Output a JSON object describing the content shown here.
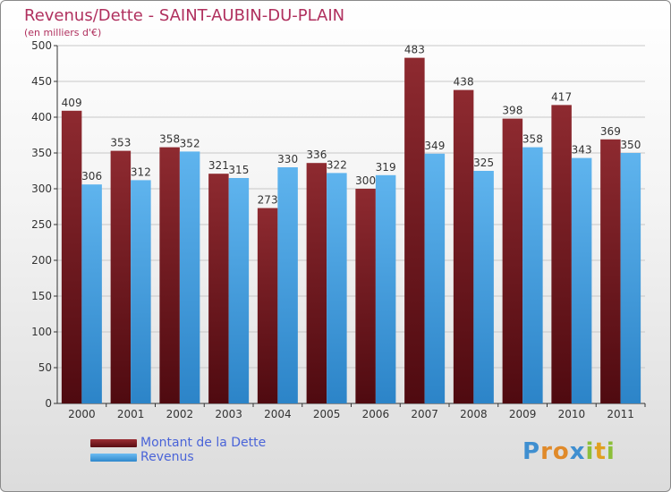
{
  "chart_data": {
    "type": "bar",
    "title": "Revenus/Dette - SAINT-AUBIN-DU-PLAIN",
    "subtitle": "(en milliers d'€)",
    "categories": [
      "2000",
      "2001",
      "2002",
      "2003",
      "2004",
      "2005",
      "2006",
      "2007",
      "2008",
      "2009",
      "2010",
      "2011"
    ],
    "series": [
      {
        "name": "Montant de la Dette",
        "values": [
          409,
          353,
          358,
          321,
          273,
          336,
          300,
          483,
          438,
          398,
          417,
          369
        ],
        "color": "#7a1c22"
      },
      {
        "name": "Revenus",
        "values": [
          306,
          312,
          352,
          315,
          330,
          322,
          319,
          349,
          325,
          358,
          343,
          350
        ],
        "color": "#4ea6e6"
      }
    ],
    "ylim": [
      0,
      500
    ],
    "yticks": [
      0,
      50,
      100,
      150,
      200,
      250,
      300,
      350,
      400,
      450,
      500
    ],
    "grid": true,
    "legend_position": "bottom-left"
  },
  "logo": {
    "letters": [
      {
        "ch": "P",
        "color": "#3f8fd0"
      },
      {
        "ch": "r",
        "color": "#e08a2a"
      },
      {
        "ch": "o",
        "color": "#e08a2a"
      },
      {
        "ch": "x",
        "color": "#3f8fd0"
      },
      {
        "ch": "i",
        "color": "#8cbf3a"
      },
      {
        "ch": "t",
        "color": "#e0a020"
      },
      {
        "ch": "i",
        "color": "#8cbf3a"
      }
    ]
  }
}
